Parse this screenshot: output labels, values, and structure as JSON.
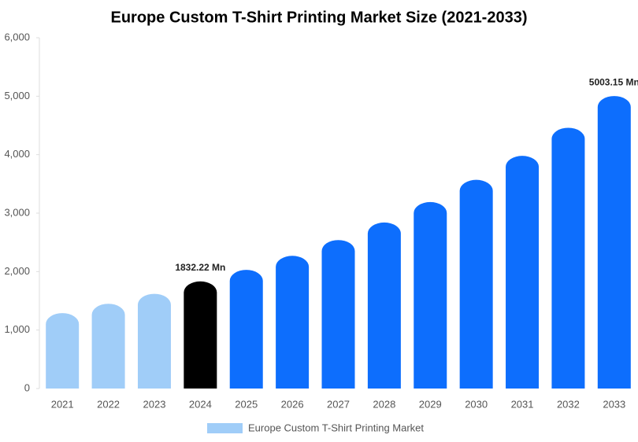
{
  "chart_data": {
    "type": "bar",
    "title": "Europe Custom T-Shirt Printing Market Size (2021-2033)",
    "categories": [
      "2021",
      "2022",
      "2023",
      "2024",
      "2025",
      "2026",
      "2027",
      "2028",
      "2029",
      "2030",
      "2031",
      "2032",
      "2033"
    ],
    "series": [
      {
        "name": "Europe Custom T-Shirt Printing Market",
        "color": "#a0cdf8",
        "values": [
          1290,
          1450,
          1620,
          1832.22,
          2030,
          2270,
          2540,
          2840,
          3190,
          3570,
          3980,
          4460,
          5003.15
        ],
        "value_labels": [
          null,
          null,
          null,
          "1832.22 Mn",
          null,
          null,
          null,
          null,
          null,
          null,
          null,
          null,
          "5003.15 Mn"
        ],
        "colors": [
          "#a0cdf8",
          "#a0cdf8",
          "#a0cdf8",
          "#000000",
          "#0d6efd",
          "#0d6efd",
          "#0d6efd",
          "#0d6efd",
          "#0d6efd",
          "#0d6efd",
          "#0d6efd",
          "#0d6efd",
          "#0d6efd"
        ]
      }
    ],
    "ylim": [
      0,
      6000
    ],
    "yticks": [
      0,
      {
        "value": 1000,
        "label": "1,000"
      },
      {
        "value": 2000,
        "label": "2,000"
      },
      {
        "value": 3000,
        "label": "3,000"
      },
      {
        "value": 4000,
        "label": "4,000"
      },
      {
        "value": 5000,
        "label": "5,000"
      },
      {
        "value": 6000,
        "label": "6,000"
      }
    ],
    "grid": false
  }
}
